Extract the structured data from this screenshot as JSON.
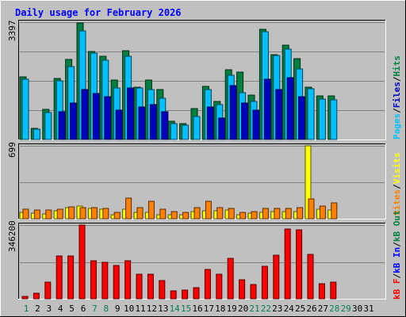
{
  "title": "Daily usage for February 2026",
  "colors": {
    "background": "#c0c0c0",
    "title": "#0000ff",
    "hits": "#008040",
    "files": "#00c0ff",
    "pages": "#0000c0",
    "visits": "#ffff00",
    "sites": "#ff8000",
    "kbytes": "#ff0000",
    "weekday_label": "#000000",
    "weekend_label": "#00805c"
  },
  "chart_data": [
    {
      "type": "bar",
      "name": "hits-files-pages",
      "max_label": "3397",
      "ylim": [
        0,
        3397
      ],
      "legend": [
        {
          "label": "Hits",
          "color": "#008040"
        },
        {
          "label": "Files",
          "color": "#00c0ff"
        },
        {
          "label": "Pages",
          "color": "#0000c0"
        }
      ],
      "series": [
        {
          "name": "Hits",
          "values": [
            1810,
            330,
            880,
            1760,
            2310,
            3370,
            2540,
            2400,
            1720,
            2570,
            1520,
            1720,
            1450,
            530,
            450,
            900,
            1540,
            1100,
            2030,
            1950,
            1290,
            3200,
            2460,
            2720,
            2350,
            1510,
            1260,
            1260
          ]
        },
        {
          "name": "Files",
          "values": [
            1750,
            290,
            780,
            1690,
            2120,
            3150,
            2500,
            2300,
            1500,
            2420,
            1500,
            1450,
            1200,
            460,
            420,
            670,
            1440,
            1000,
            1860,
            1350,
            1100,
            3130,
            2440,
            2610,
            2050,
            1470,
            1170,
            1150
          ]
        },
        {
          "name": "Pages",
          "values": [
            0,
            0,
            0,
            800,
            1050,
            1450,
            1320,
            1250,
            850,
            1500,
            950,
            1000,
            800,
            0,
            0,
            0,
            950,
            630,
            1550,
            1050,
            850,
            1750,
            1450,
            1800,
            1250,
            0,
            0,
            0
          ]
        }
      ]
    },
    {
      "type": "bar",
      "name": "visits-sites",
      "max_label": "699",
      "ylim": [
        0,
        699
      ],
      "legend": [
        {
          "label": "Visits",
          "color": "#ffff00"
        },
        {
          "label": "Sites",
          "color": "#ff8000"
        }
      ],
      "series": [
        {
          "name": "Visits",
          "values": [
            60,
            55,
            45,
            75,
            110,
            120,
            95,
            90,
            40,
            90,
            60,
            60,
            40,
            40,
            40,
            70,
            75,
            75,
            80,
            40,
            50,
            60,
            65,
            65,
            70,
            699,
            90,
            85
          ]
        },
        {
          "name": "Sites",
          "values": [
            90,
            80,
            80,
            90,
            115,
            105,
            110,
            100,
            60,
            195,
            110,
            170,
            90,
            70,
            60,
            110,
            170,
            110,
            100,
            60,
            70,
            100,
            100,
            100,
            110,
            190,
            120,
            150
          ]
        }
      ]
    },
    {
      "type": "bar",
      "name": "kbytes",
      "max_label": "346200",
      "ylim": [
        0,
        346200
      ],
      "legend": [
        {
          "label": "kB F",
          "color": "#ff0000"
        },
        {
          "label": "kB In",
          "color": "#0000ff"
        },
        {
          "label": "kB Out",
          "color": "#008040"
        }
      ],
      "series": [
        {
          "name": "kB F",
          "values": [
            12000,
            27000,
            80000,
            202000,
            200000,
            346200,
            178000,
            172000,
            158000,
            180000,
            115000,
            116000,
            87000,
            39000,
            40000,
            53000,
            139000,
            116000,
            189000,
            88000,
            68000,
            152000,
            204000,
            326000,
            325000,
            208000,
            71000,
            80000
          ]
        }
      ]
    }
  ],
  "x_axis": {
    "days": [
      {
        "label": "1",
        "weekend": true
      },
      {
        "label": "2",
        "weekend": false
      },
      {
        "label": "3",
        "weekend": false
      },
      {
        "label": "4",
        "weekend": false
      },
      {
        "label": "5",
        "weekend": false
      },
      {
        "label": "6",
        "weekend": false
      },
      {
        "label": "7",
        "weekend": true
      },
      {
        "label": "8",
        "weekend": true
      },
      {
        "label": "9",
        "weekend": false
      },
      {
        "label": "10",
        "weekend": false
      },
      {
        "label": "11",
        "weekend": false
      },
      {
        "label": "12",
        "weekend": false
      },
      {
        "label": "13",
        "weekend": false
      },
      {
        "label": "14",
        "weekend": true
      },
      {
        "label": "15",
        "weekend": true
      },
      {
        "label": "16",
        "weekend": false
      },
      {
        "label": "17",
        "weekend": false
      },
      {
        "label": "18",
        "weekend": false
      },
      {
        "label": "19",
        "weekend": false
      },
      {
        "label": "20",
        "weekend": false
      },
      {
        "label": "21",
        "weekend": true
      },
      {
        "label": "22",
        "weekend": true
      },
      {
        "label": "23",
        "weekend": false
      },
      {
        "label": "24",
        "weekend": false
      },
      {
        "label": "25",
        "weekend": false
      },
      {
        "label": "26",
        "weekend": false
      },
      {
        "label": "27",
        "weekend": false
      },
      {
        "label": "28",
        "weekend": true
      },
      {
        "label": "29",
        "weekend": true
      },
      {
        "label": "30",
        "weekend": false
      },
      {
        "label": "31",
        "weekend": false
      }
    ]
  }
}
